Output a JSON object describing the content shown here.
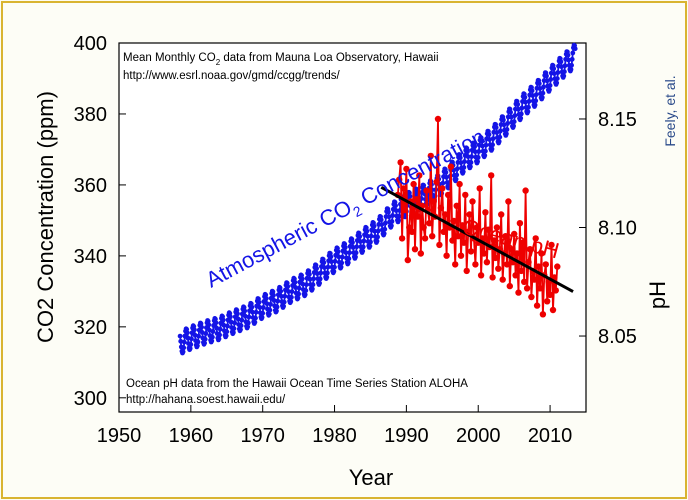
{
  "chart_data": {
    "type": "line",
    "xlabel": "Year",
    "ylabel_left": "CO2 Concentration (ppm)",
    "ylabel_right": "pH",
    "x_ticks": [
      "1950",
      "1960",
      "1970",
      "1980",
      "1990",
      "2000",
      "2010"
    ],
    "y_left_ticks": [
      "300",
      "320",
      "340",
      "360",
      "380",
      "400"
    ],
    "y_right_ticks": [
      "8.05",
      "8.10",
      "8.15"
    ],
    "xlim": [
      1950,
      2015
    ],
    "ylim_left": [
      296,
      400
    ],
    "ylim_right": [
      8.015,
      8.185
    ],
    "grid": false,
    "annotations": {
      "co2_source_line1": "Mean Monthly CO",
      "co2_source_line1_sub": "2",
      "co2_source_line1_rest": " data from Mauna Loa Observatory, Hawaii",
      "co2_source_line2": "http://www.esrl.noaa.gov/gmd/ccgg/trends/",
      "ph_source_line1": "Ocean pH data from the Hawaii Ocean Time Series Station ALOHA",
      "ph_source_line2": "http://hahana.soest.hawaii.edu/"
    },
    "credit": "Feely, et al.",
    "series": [
      {
        "name": "Atmospheric CO2 Concentration",
        "name_main_1": "Atmospheric CO",
        "name_sub": "2",
        "name_main_2": " Concentration",
        "axis": "left",
        "color": "#1414e6",
        "x": [
          1958.5,
          1960,
          1962,
          1964,
          1966,
          1968,
          1970,
          1972,
          1974,
          1976,
          1978,
          1980,
          1982,
          1984,
          1986,
          1988,
          1990,
          1992,
          1994,
          1996,
          1998,
          2000,
          2002,
          2004,
          2006,
          2008,
          2010,
          2012,
          2013.5
        ],
        "values": [
          315.5,
          316.9,
          318.4,
          319.6,
          321.4,
          323.0,
          325.7,
          327.5,
          330.2,
          332.1,
          335.4,
          338.7,
          341.1,
          344.4,
          347.2,
          351.6,
          354.4,
          356.4,
          358.8,
          362.6,
          366.8,
          369.6,
          373.2,
          377.5,
          381.9,
          385.6,
          389.9,
          393.8,
          396.5
        ],
        "seasonal_amplitude_ppm": 3.2
      },
      {
        "name": "Ocean pH",
        "axis": "right",
        "color": "#ee0000",
        "x": [
          1988.8,
          1989.0,
          1989.2,
          1989.4,
          1989.6,
          1989.8,
          1990.0,
          1990.2,
          1990.4,
          1990.6,
          1990.8,
          1991.0,
          1991.2,
          1991.4,
          1991.6,
          1991.8,
          1992.0,
          1992.2,
          1992.4,
          1992.6,
          1992.8,
          1993.0,
          1993.2,
          1993.4,
          1993.6,
          1993.8,
          1994.0,
          1994.2,
          1994.4,
          1994.6,
          1994.8,
          1995.0,
          1995.2,
          1995.4,
          1995.6,
          1995.8,
          1996.0,
          1996.2,
          1996.4,
          1996.6,
          1996.8,
          1997.0,
          1997.2,
          1997.4,
          1997.6,
          1997.8,
          1998.0,
          1998.2,
          1998.4,
          1998.6,
          1998.8,
          1999.0,
          1999.2,
          1999.4,
          1999.6,
          1999.8,
          2000.0,
          2000.2,
          2000.4,
          2000.6,
          2000.8,
          2001.0,
          2001.2,
          2001.4,
          2001.6,
          2001.8,
          2002.0,
          2002.2,
          2002.4,
          2002.6,
          2002.8,
          2003.0,
          2003.2,
          2003.4,
          2003.6,
          2003.8,
          2004.0,
          2004.2,
          2004.4,
          2004.6,
          2004.8,
          2005.0,
          2005.2,
          2005.4,
          2005.6,
          2005.8,
          2006.0,
          2006.2,
          2006.4,
          2006.6,
          2006.8,
          2007.0,
          2007.2,
          2007.4,
          2007.6,
          2007.8,
          2008.0,
          2008.2,
          2008.4,
          2008.6,
          2008.8,
          2009.0,
          2009.2,
          2009.4,
          2009.6,
          2009.8,
          2010.0,
          2010.2,
          2010.4,
          2010.6,
          2010.8,
          2011.0
        ],
        "values": [
          8.115,
          8.122,
          8.13,
          8.095,
          8.118,
          8.108,
          8.127,
          8.085,
          8.1,
          8.112,
          8.098,
          8.12,
          8.09,
          8.113,
          8.105,
          8.124,
          8.088,
          8.11,
          8.1,
          8.095,
          8.117,
          8.108,
          8.102,
          8.133,
          8.096,
          8.112,
          8.105,
          8.121,
          8.15,
          8.092,
          8.109,
          8.118,
          8.098,
          8.106,
          8.087,
          8.115,
          8.1,
          8.128,
          8.094,
          8.103,
          8.083,
          8.11,
          8.096,
          8.12,
          8.087,
          8.101,
          8.093,
          8.115,
          8.08,
          8.098,
          8.106,
          8.089,
          8.112,
          8.095,
          8.083,
          8.1,
          8.093,
          8.118,
          8.078,
          8.095,
          8.088,
          8.107,
          8.084,
          8.099,
          8.091,
          8.124,
          8.077,
          8.094,
          8.086,
          8.1,
          8.081,
          8.09,
          8.106,
          8.076,
          8.088,
          8.096,
          8.083,
          8.112,
          8.073,
          8.09,
          8.084,
          8.097,
          8.078,
          8.088,
          8.07,
          8.102,
          8.08,
          8.093,
          8.075,
          8.117,
          8.072,
          8.084,
          8.09,
          8.068,
          8.08,
          8.076,
          8.095,
          8.064,
          8.082,
          8.072,
          8.088,
          8.06,
          8.078,
          8.083,
          8.066,
          8.075,
          8.069,
          8.092,
          8.062,
          8.077,
          8.071,
          8.082
        ]
      },
      {
        "name": "pH trend",
        "axis": "right",
        "color": "#000000",
        "x": [
          1986.5,
          2013.2
        ],
        "values": [
          8.1185,
          8.0705
        ]
      }
    ]
  }
}
